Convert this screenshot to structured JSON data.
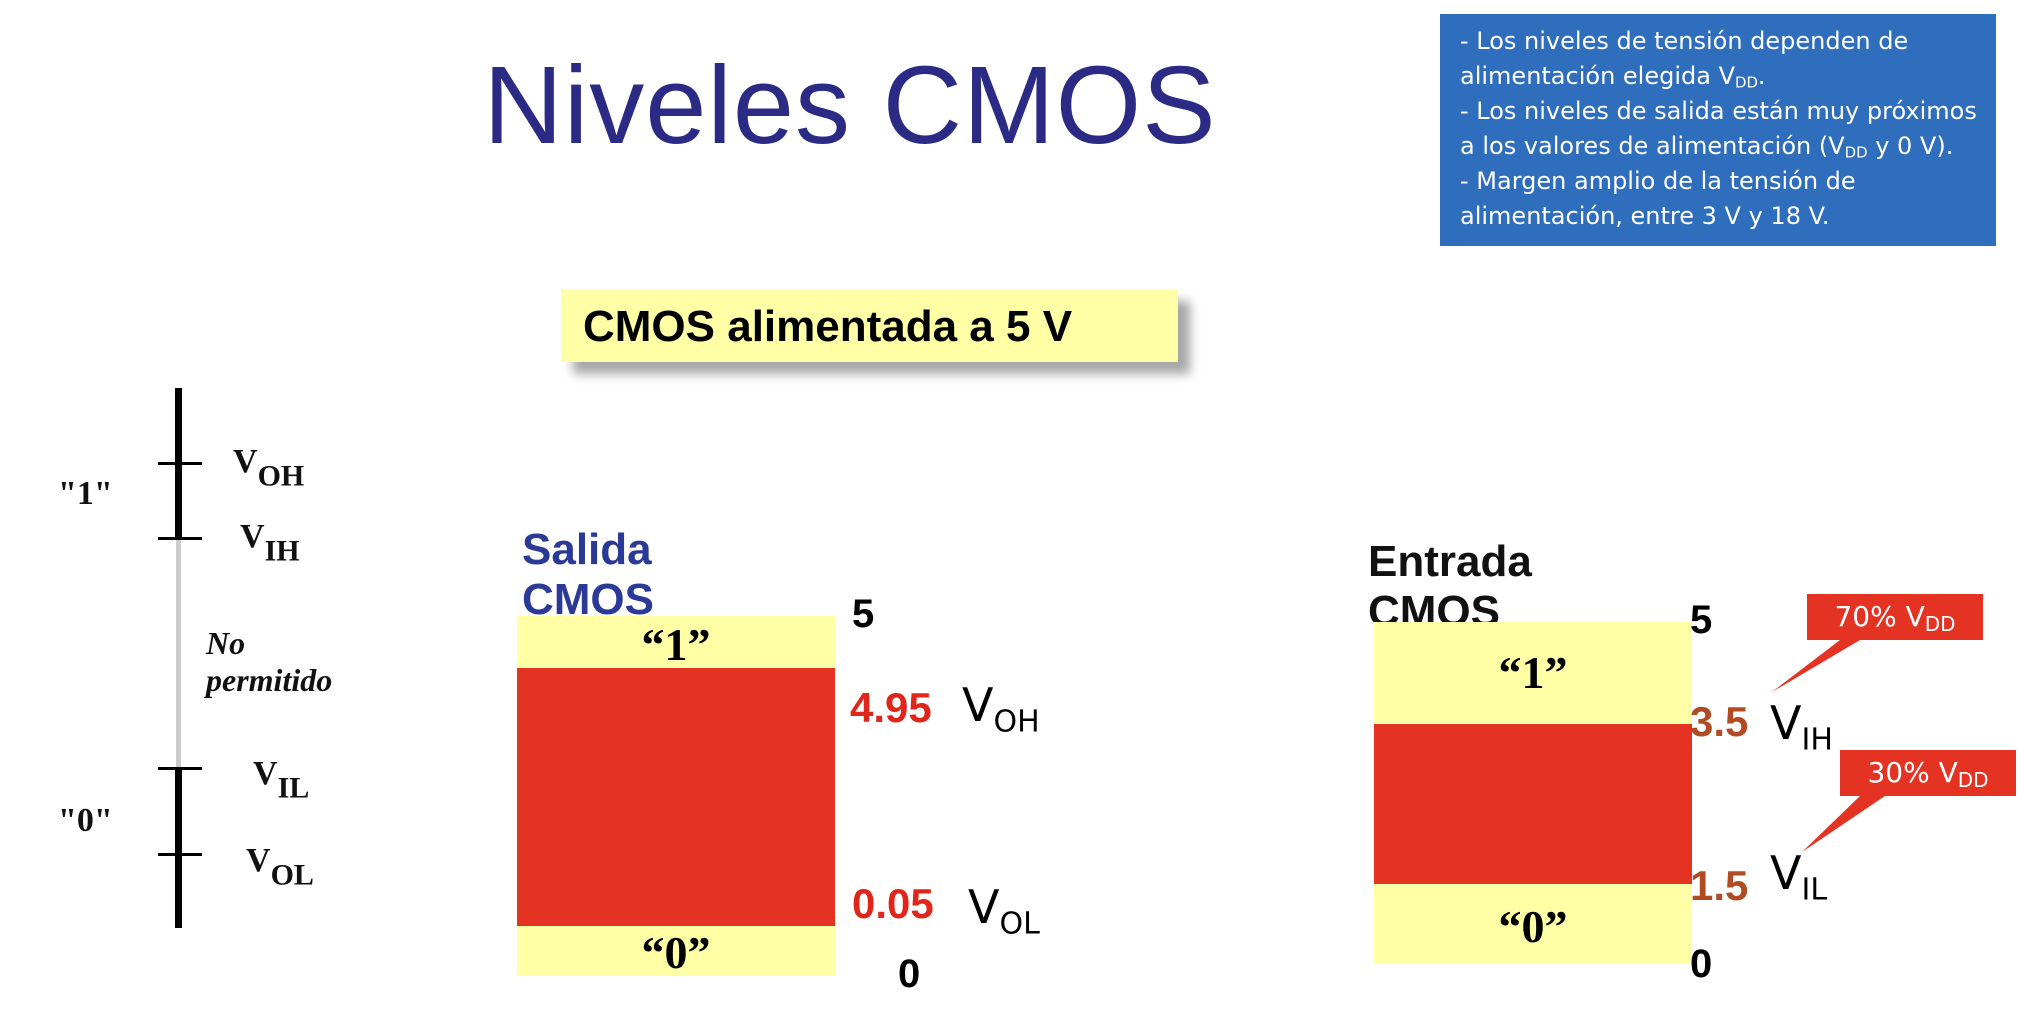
{
  "title": "Niveles CMOS",
  "info": {
    "line1": "- Los niveles de tensión dependen de alimentación elegida V",
    "line1_sub": "DD",
    "line1_end": ".",
    "line2": "- Los niveles de salida están muy próximos a los valores de alimentación (V",
    "line2_sub": "DD",
    "line2_end": " y  0 V).",
    "line3": "- Margen amplio de la tensión de alimentación, entre 3 V y  18 V."
  },
  "banner": "CMOS alimentada a 5 V",
  "scale": {
    "one_label": "\"1\"",
    "zero_label": "\"0\"",
    "voh": {
      "main": "V",
      "sub": "OH"
    },
    "vih": {
      "main": "V",
      "sub": "IH"
    },
    "vil": {
      "main": "V",
      "sub": "IL"
    },
    "vol": {
      "main": "V",
      "sub": "OL"
    },
    "forbidden": "No permitido"
  },
  "output": {
    "heading": "Salida CMOS",
    "one": "“1”",
    "zero": "“0”",
    "top_value": "5",
    "high_value": "4.95",
    "high_label": {
      "main": "V",
      "sub": "OH"
    },
    "low_value": "0.05",
    "low_label": {
      "main": "V",
      "sub": "OL"
    },
    "bottom_value": "0"
  },
  "input": {
    "heading": "Entrada CMOS",
    "one": "“1”",
    "zero": "“0”",
    "top_value": "5",
    "high_value": "3.5",
    "high_label": {
      "main": "V",
      "sub": "IH"
    },
    "low_value": "1.5",
    "low_label": {
      "main": "V",
      "sub": "IL"
    },
    "bottom_value": "0",
    "callout_high": {
      "main": "70% V",
      "sub": "DD"
    },
    "callout_low": {
      "main": "30% V",
      "sub": "DD"
    }
  },
  "colors": {
    "title": "#2b2b86",
    "info_bg": "#2f6dbd",
    "yellow": "#ffffa6",
    "red": "#e53323",
    "output_heading": "#2b3a96"
  }
}
